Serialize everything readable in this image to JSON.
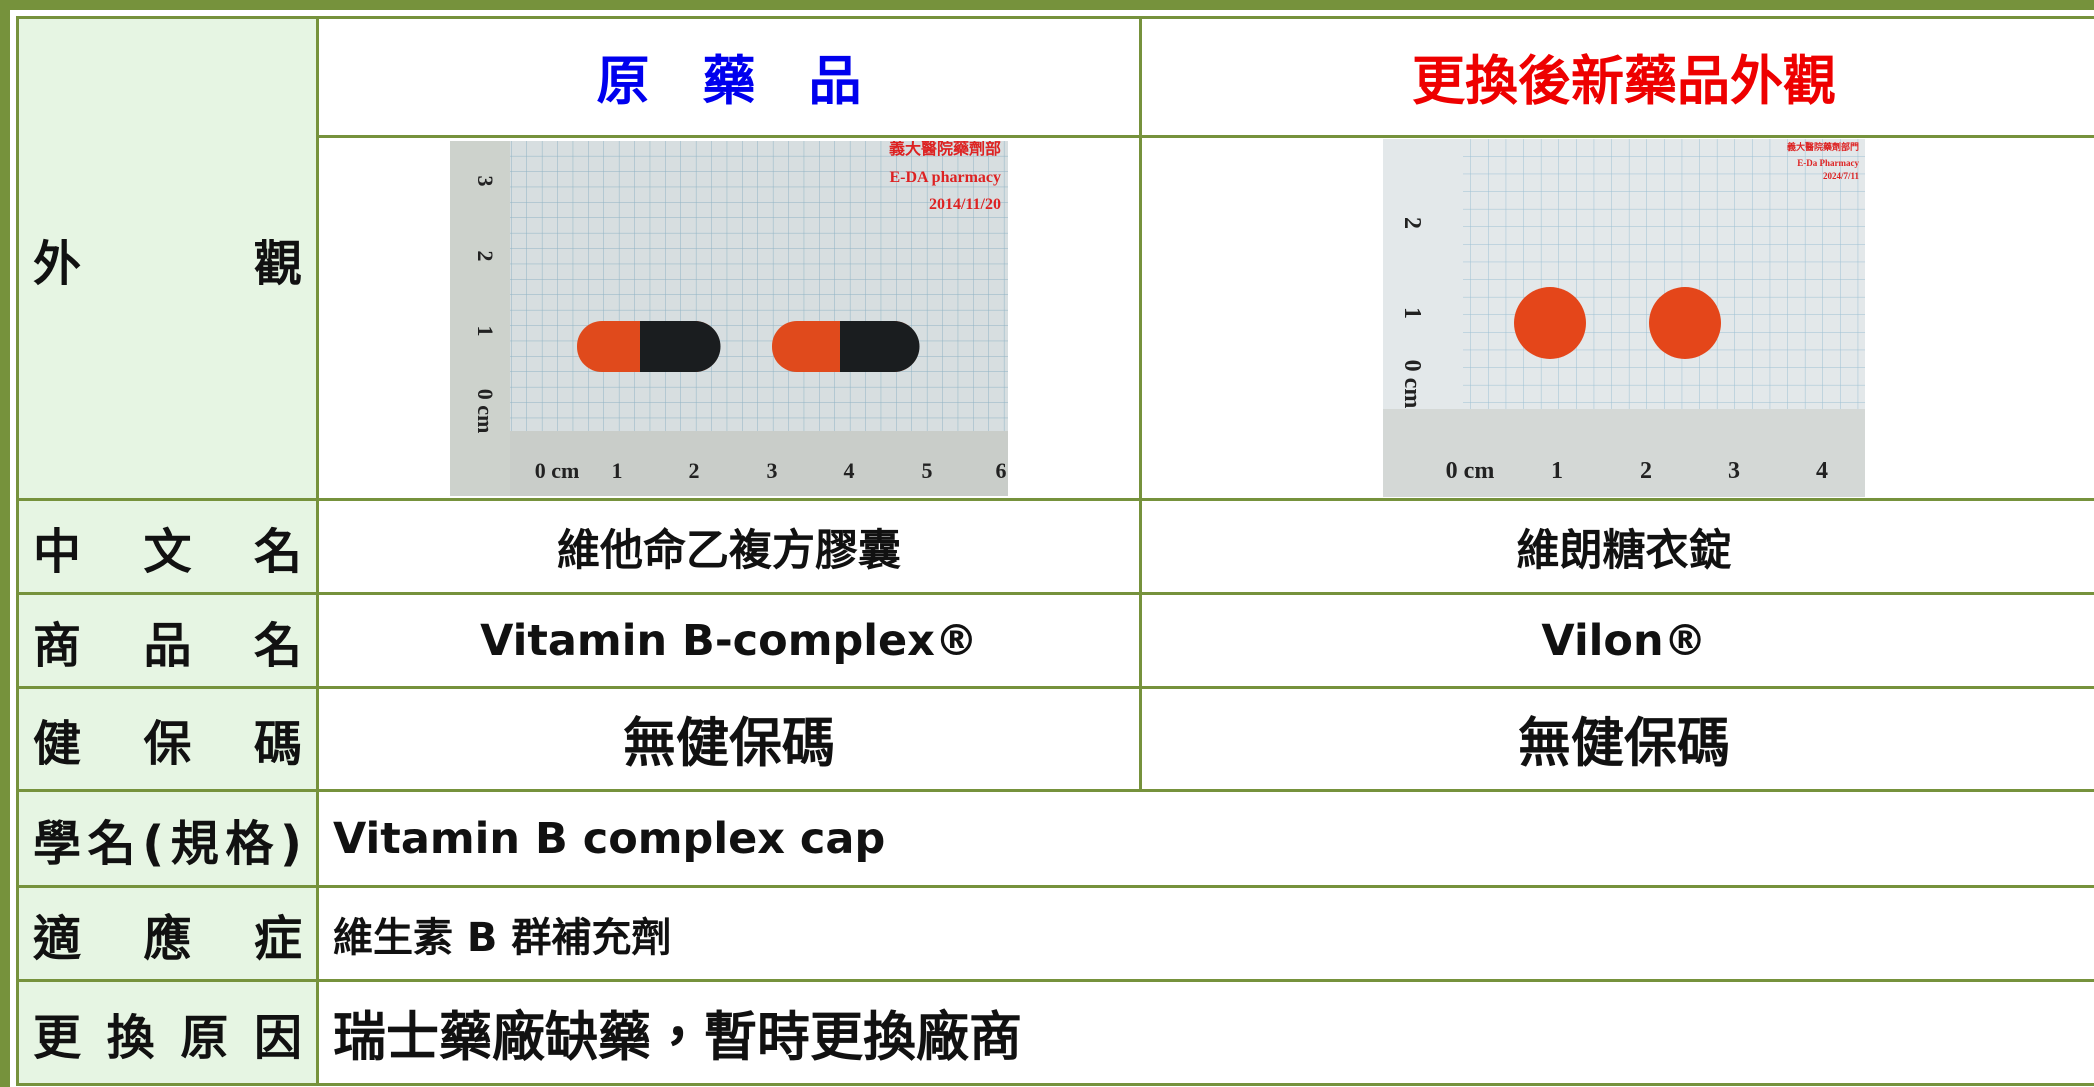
{
  "table": {
    "header": {
      "original": "原　藥　品",
      "new": "更換後新藥品外觀"
    },
    "appearance": {
      "label": "外 觀",
      "original_photo": {
        "watermark": [
          "義大醫院藥劑部",
          "E-DA pharmacy",
          "2014/11/20"
        ],
        "ruler_x": [
          "0 cm",
          "1",
          "2",
          "3",
          "4",
          "5",
          "6"
        ],
        "ruler_y": [
          "0 cm",
          "1",
          "2",
          "3"
        ]
      },
      "new_photo": {
        "watermark": [
          "義大醫院藥劑部門",
          "E-Da Pharmacy",
          "2024/7/11"
        ],
        "ruler_x": [
          "0 cm",
          "1",
          "2",
          "3",
          "4"
        ],
        "ruler_y": [
          "0 cm",
          "1",
          "2"
        ]
      }
    },
    "rows": [
      {
        "label": "中 文 名",
        "original": "維他命乙複方膠囊",
        "new": "維朗糖衣錠"
      },
      {
        "label": "商 品 名",
        "original": "Vitamin B-complex®",
        "new": "Vilon®"
      },
      {
        "label": "健 保 碼",
        "original": "無健保碼",
        "new": "無健保碼"
      }
    ],
    "full_rows": [
      {
        "label": "學名(規格)",
        "value": "Vitamin B complex cap"
      },
      {
        "label": "適 應 症",
        "value": "維生素 B 群補充劑"
      },
      {
        "label": "更 換 原 因",
        "value": "瑞士藥廠缺藥，暫時更換廠商"
      }
    ]
  }
}
